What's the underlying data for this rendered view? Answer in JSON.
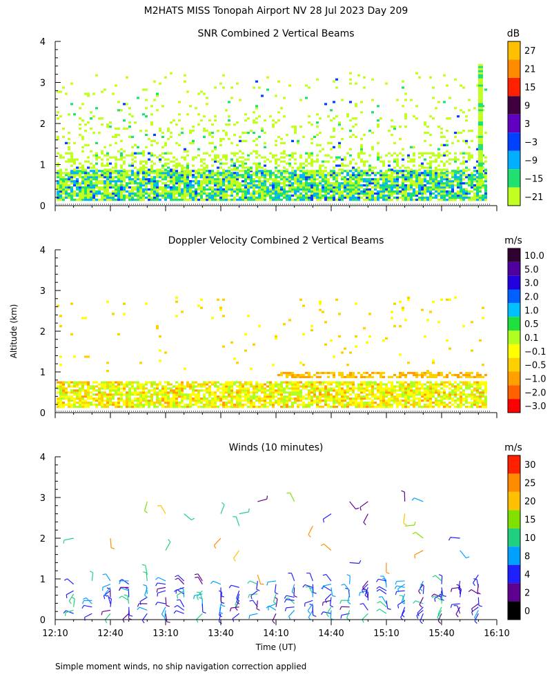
{
  "page": {
    "title": "M2HATS MISS Tonopah Airport NV  28 Jul 2023 Day 209",
    "ylabel": "Altitude (km)",
    "xlabel": "Time (UT)",
    "footnote": "Simple moment winds, no ship navigation correction applied"
  },
  "chart_data": [
    {
      "type": "heatmap",
      "title": "SNR Combined 2 Vertical Beams",
      "unit": "dB",
      "ylim": [
        0,
        4
      ],
      "yticks": [
        "0",
        "1",
        "2",
        "3",
        "4"
      ],
      "colorbar": {
        "labels": [
          "27",
          "21",
          "15",
          "9",
          "3",
          "−3",
          "−9",
          "−15",
          "−21"
        ],
        "colors": [
          "#ffc000",
          "#ff8c00",
          "#ff2000",
          "#400040",
          "#6000c0",
          "#0040ff",
          "#00b0ff",
          "#20e070",
          "#c0ff20"
        ]
      },
      "layers": [
        {
          "altitude_km": 0.15,
          "value": -12
        },
        {
          "altitude_km": 0.35,
          "value": -10
        },
        {
          "altitude_km": 0.55,
          "value": -15
        },
        {
          "altitude_km": 0.8,
          "value": -15
        },
        {
          "altitude_km": 1.0,
          "value": -21
        },
        {
          "altitude_km": 1.4,
          "value": -21
        },
        {
          "altitude_km": 2.0,
          "value": -21
        },
        {
          "altitude_km": 2.5,
          "value": -21
        }
      ]
    },
    {
      "type": "heatmap",
      "title": "Doppler Velocity Combined 2 Vertical Beams",
      "unit": "m/s",
      "ylim": [
        0,
        4
      ],
      "yticks": [
        "0",
        "1",
        "2",
        "3",
        "4"
      ],
      "colorbar": {
        "labels": [
          "10.0",
          "5.0",
          "3.0",
          "2.0",
          "1.0",
          "0.5",
          "0.1",
          "−0.1",
          "−0.5",
          "−1.0",
          "−2.0",
          "−3.0"
        ],
        "colors": [
          "#300030",
          "#5000a0",
          "#2000e0",
          "#0060ff",
          "#00c0ff",
          "#20e040",
          "#b0ff20",
          "#ffff00",
          "#ffd000",
          "#ffa000",
          "#ff6000",
          "#ff0000"
        ]
      },
      "layers": [
        {
          "altitude_km": 0.15,
          "value": -0.1
        },
        {
          "altitude_km": 0.35,
          "value": -0.3
        },
        {
          "altitude_km": 0.55,
          "value": -0.1
        },
        {
          "altitude_km": 0.9,
          "value": -0.7
        }
      ]
    },
    {
      "type": "scatter",
      "title": "Winds (10 minutes)",
      "unit": "m/s",
      "ylim": [
        0,
        4
      ],
      "yticks": [
        "0",
        "1",
        "2",
        "3",
        "4"
      ],
      "colorbar": {
        "labels": [
          "30",
          "25",
          "20",
          "15",
          "10",
          "8",
          "4",
          "2",
          "0"
        ],
        "colors": [
          "#ff2000",
          "#ff8c00",
          "#ffc000",
          "#80e000",
          "#20d080",
          "#00a0ff",
          "#2020ff",
          "#600090",
          "#000000"
        ]
      },
      "series": [
        {
          "x": "12:10",
          "y": 0.6,
          "speed": 4
        },
        {
          "x": "12:20",
          "y": 0.8,
          "speed": 6
        },
        {
          "x": "12:30",
          "y": 0.7,
          "speed": 5
        },
        {
          "x": "12:40",
          "y": 0.9,
          "speed": 4
        },
        {
          "x": "12:50",
          "y": 0.8,
          "speed": 6
        },
        {
          "x": "13:00",
          "y": 0.6,
          "speed": 3
        },
        {
          "x": "13:20",
          "y": 0.7,
          "speed": 5
        },
        {
          "x": "13:30",
          "y": 0.6,
          "speed": 8
        },
        {
          "x": "13:50",
          "y": 0.7,
          "speed": 6
        },
        {
          "x": "14:10",
          "y": 0.8,
          "speed": 10
        },
        {
          "x": "14:30",
          "y": 0.7,
          "speed": 8
        },
        {
          "x": "14:50",
          "y": 0.6,
          "speed": 8
        },
        {
          "x": "15:10",
          "y": 0.7,
          "speed": 10
        },
        {
          "x": "15:30",
          "y": 0.6,
          "speed": 8
        },
        {
          "x": "15:50",
          "y": 0.8,
          "speed": 12
        },
        {
          "x": "16:00",
          "y": 0.7,
          "speed": 6
        }
      ]
    }
  ],
  "xaxis": {
    "ticks": [
      "12:10",
      "12:40",
      "13:10",
      "13:40",
      "14:10",
      "14:40",
      "15:10",
      "15:40",
      "16:10"
    ]
  }
}
